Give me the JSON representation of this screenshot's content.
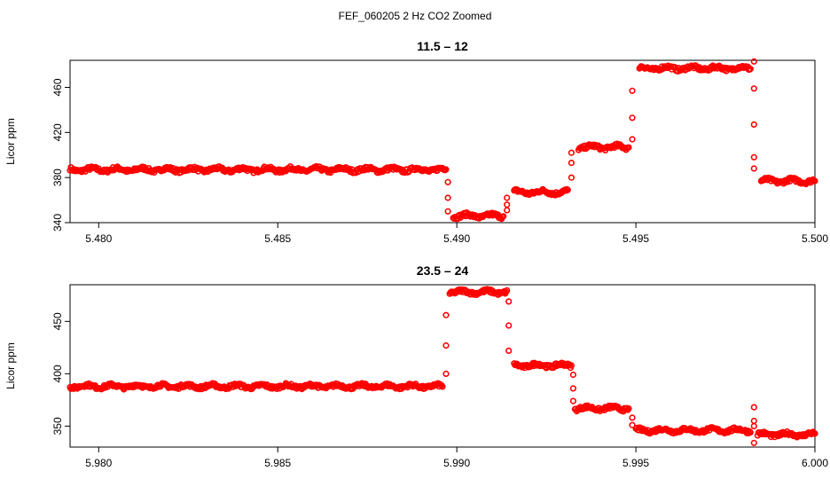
{
  "figure": {
    "title": "FEF_060205  2 Hz CO2 Zoomed"
  },
  "chart_data": [
    {
      "type": "scatter",
      "title": "11.5 – 12",
      "xlabel": "",
      "ylabel": "Licor ppm",
      "xlim": [
        5.4792,
        5.5
      ],
      "ylim": [
        340,
        484
      ],
      "xticks": [
        "5.480",
        "5.485",
        "5.490",
        "5.495",
        "5.500"
      ],
      "xtick_values": [
        5.48,
        5.485,
        5.49,
        5.495,
        5.5
      ],
      "yticks": [
        "340",
        "380",
        "420",
        "460"
      ],
      "ytick_values": [
        340,
        380,
        420,
        460
      ],
      "marker": "open-circle",
      "color": "#ff0000",
      "segments": [
        {
          "x_start": 5.4792,
          "x_end": 5.4897,
          "y": 387
        },
        {
          "x_start": 5.4899,
          "x_end": 5.4913,
          "y": 346
        },
        {
          "x_start": 5.4916,
          "x_end": 5.4931,
          "y": 367
        },
        {
          "x_start": 5.4934,
          "x_end": 5.4948,
          "y": 407
        },
        {
          "x_start": 5.4951,
          "x_end": 5.4982,
          "y": 477
        },
        {
          "x_start": 5.4985,
          "x_end": 5.5,
          "y": 377
        }
      ],
      "transitions": [
        {
          "x": 5.48975,
          "y": [
            376,
            362,
            350
          ]
        },
        {
          "x": 5.4914,
          "y": [
            351,
            356,
            362
          ]
        },
        {
          "x": 5.4932,
          "y": [
            380,
            393,
            402
          ]
        },
        {
          "x": 5.4949,
          "y": [
            414,
            433,
            457
          ]
        },
        {
          "x": 5.4983,
          "y": [
            483,
            459,
            427,
            398,
            388
          ]
        }
      ]
    },
    {
      "type": "scatter",
      "title": "23.5 – 24",
      "xlabel": "",
      "ylabel": "Licor ppm",
      "xlim": [
        5.9792,
        6.0
      ],
      "ylim": [
        330,
        485
      ],
      "xticks": [
        "5.980",
        "5.985",
        "5.990",
        "5.995",
        "6.000"
      ],
      "xtick_values": [
        5.98,
        5.985,
        5.99,
        5.995,
        6.0
      ],
      "yticks": [
        "350",
        "400",
        "450"
      ],
      "ytick_values": [
        350,
        400,
        450
      ],
      "marker": "open-circle",
      "color": "#ff0000",
      "segments": [
        {
          "x_start": 5.9792,
          "x_end": 5.9896,
          "y": 388
        },
        {
          "x_start": 5.9898,
          "x_end": 5.9914,
          "y": 478
        },
        {
          "x_start": 5.9916,
          "x_end": 5.9932,
          "y": 408
        },
        {
          "x_start": 5.9933,
          "x_end": 5.9948,
          "y": 367
        },
        {
          "x_start": 5.995,
          "x_end": 5.9982,
          "y": 346
        },
        {
          "x_start": 5.9984,
          "x_end": 6.0,
          "y": 342
        }
      ],
      "transitions": [
        {
          "x": 5.9897,
          "y": [
            400,
            427,
            456
          ]
        },
        {
          "x": 5.99145,
          "y": [
            469,
            446,
            422
          ]
        },
        {
          "x": 5.99325,
          "y": [
            399,
            386,
            374
          ]
        },
        {
          "x": 5.9949,
          "y": [
            358,
            351
          ]
        },
        {
          "x": 5.9983,
          "y": [
            368,
            355,
            350,
            334
          ]
        }
      ]
    }
  ]
}
